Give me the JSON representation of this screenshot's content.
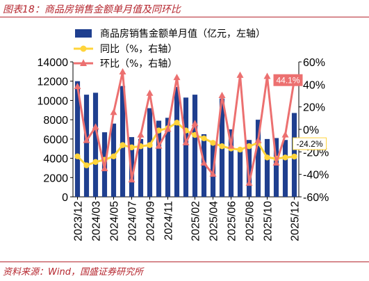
{
  "title": "图表18：商品房销售金额单月值及同环比",
  "source": "资料来源：Wind，国盛证券研究所",
  "colors": {
    "bar": "#1f3f8f",
    "yoy": "#ffd43b",
    "mom": "#ec7070",
    "accent": "#b5262e"
  },
  "chart_data": {
    "type": "bar",
    "categories": [
      "2023/12",
      "2024/01",
      "2024/02",
      "2024/03",
      "2024/04",
      "2024/05",
      "2024/06",
      "2024/07",
      "2024/08",
      "2024/09",
      "2024/10",
      "2024/11",
      "2024/12",
      "2025/01",
      "2025/02",
      "2025/03",
      "2025/04",
      "2025/05",
      "2025/06",
      "2025/07",
      "2025/08",
      "2025/09",
      "2025/10",
      "2025/11",
      "2025/12"
    ],
    "x_tick_labels": [
      "2023/12",
      "2024/03",
      "2024/05",
      "2024/07",
      "2024/09",
      "2024/11",
      "2025/02",
      "2025/04",
      "2025/06",
      "2025/08",
      "2025/10",
      "2025/12"
    ],
    "x_tick_indices": [
      0,
      2,
      4,
      6,
      8,
      10,
      13,
      15,
      17,
      19,
      21,
      24
    ],
    "series": [
      {
        "name": "商品房销售金额单月值（亿元，左轴）",
        "type": "bar",
        "axis": "left",
        "values": [
          12000,
          10600,
          10800,
          6700,
          7600,
          11500,
          6200,
          6000,
          9200,
          7900,
          8200,
          11400,
          10300,
          10600,
          6500,
          5500,
          10200,
          7000,
          4900,
          5900,
          8000,
          6000,
          6100,
          5900,
          8700
        ]
      },
      {
        "name": "同比（%，右轴）",
        "type": "line",
        "axis": "right",
        "values": [
          -24,
          -32,
          -29,
          -27,
          -24,
          -14,
          -16,
          -15,
          -14,
          -1,
          1,
          6,
          -1,
          -5,
          -8,
          -12,
          -15,
          -17,
          -18,
          -15,
          -12,
          -25,
          -26,
          -25,
          -24.2
        ]
      },
      {
        "name": "环比（%，右轴）",
        "type": "line",
        "axis": "right",
        "values": [
          38,
          -10,
          2,
          -35,
          15,
          51,
          -45,
          -5,
          32,
          -15,
          0,
          46,
          -12,
          5,
          -30,
          -40,
          30,
          -15,
          48,
          -48,
          -10,
          47,
          -30,
          -5,
          44.1
        ]
      }
    ],
    "y_left": {
      "min": 0,
      "max": 14000,
      "ticks": [
        0,
        2000,
        4000,
        6000,
        8000,
        10000,
        12000,
        14000
      ]
    },
    "y_right": {
      "min": -60,
      "max": 60,
      "ticks": [
        -60,
        -40,
        -20,
        0,
        20,
        40,
        60
      ],
      "suffix": "%"
    },
    "data_labels": [
      {
        "series": "环比（%，右轴）",
        "index": 24,
        "text": "44.1%"
      },
      {
        "series": "同比（%，右轴）",
        "index": 24,
        "text": "-24.2%"
      }
    ],
    "legend_position": "top-center",
    "grid": false
  }
}
